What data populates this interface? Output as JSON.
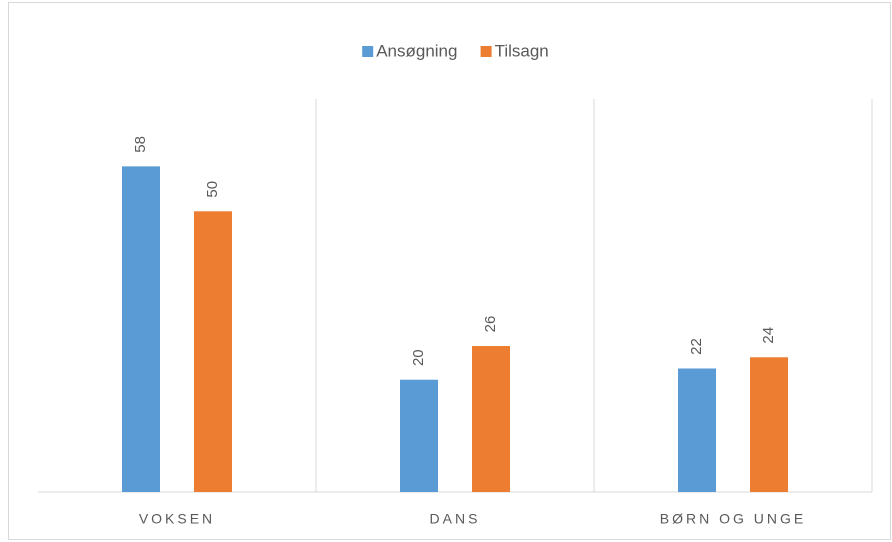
{
  "chart_data": {
    "type": "bar",
    "categories": [
      "VOKSEN",
      "DANS",
      "BØRN OG UNGE"
    ],
    "series": [
      {
        "name": "Ansøgning",
        "color": "#5b9bd5",
        "values": [
          58,
          20,
          22
        ]
      },
      {
        "name": "Tilsagn",
        "color": "#ed7d31",
        "values": [
          50,
          26,
          24
        ]
      }
    ],
    "ylim": [
      0,
      70
    ],
    "legend": "top"
  }
}
